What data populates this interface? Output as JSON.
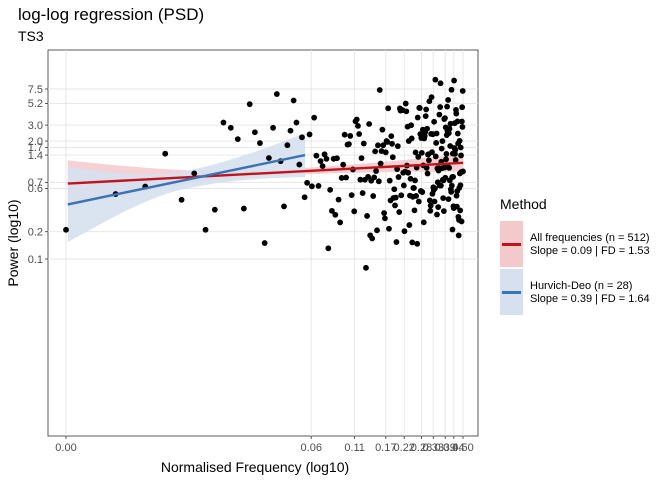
{
  "title": "log-log regression (PSD)",
  "subtitle": "TS3",
  "legend": {
    "title": "Method",
    "items": [
      {
        "line1": "All frequencies (n = 512)",
        "line2": "Slope = 0.09 | FD = 1.53",
        "color": "#c0141c",
        "fill": "#f3c9cc"
      },
      {
        "line1": "Hurvich-Deo (n = 28)",
        "line2": "Slope = 0.39 | FD = 1.64",
        "color": "#3a73b2",
        "fill": "#d6e0ee"
      }
    ]
  },
  "chart_data": {
    "type": "scatter",
    "title": "log-log regression (PSD)",
    "subtitle": "TS3",
    "xlabel": "Normalised Frequency (log10)",
    "ylabel": "Power (log10)",
    "x_ticks": [
      "0.00",
      "0.06",
      "0.11",
      "0.17",
      "0.22",
      "0.28",
      "0.33",
      "0.39",
      "0.44",
      "0.50"
    ],
    "y_ticks": [
      "0.1",
      "0.2",
      "0.6",
      "0.7",
      "1.4",
      "1.7",
      "2.0",
      "3.0",
      "5.2",
      "7.5"
    ],
    "scale": "log-log",
    "grid": true,
    "legend_position": "right",
    "series": [
      {
        "name": "All frequencies (n = 512)",
        "type": "regression-line",
        "color": "#c0141c",
        "x_range": [
          0.002,
          0.5
        ],
        "y_start": 0.68,
        "y_end": 1.15,
        "slope": 0.09,
        "fd": 1.53
      },
      {
        "name": "Hurvich-Deo (n = 28)",
        "type": "regression-line",
        "color": "#3a73b2",
        "x_range": [
          0.002,
          0.055
        ],
        "y_start": 0.4,
        "y_end": 1.4,
        "slope": 0.39,
        "fd": 1.64
      }
    ],
    "points": [
      [
        0.00195,
        0.21
      ],
      [
        0.0039,
        0.52
      ],
      [
        0.0059,
        0.63
      ],
      [
        0.0078,
        1.45
      ],
      [
        0.0098,
        0.45
      ],
      [
        0.0117,
        0.88
      ],
      [
        0.0137,
        0.21
      ],
      [
        0.0156,
        0.35
      ],
      [
        0.0176,
        3.2
      ],
      [
        0.0195,
        2.8
      ],
      [
        0.0215,
        2.1
      ],
      [
        0.0234,
        0.36
      ],
      [
        0.0254,
        5.1
      ],
      [
        0.0273,
        2.5
      ],
      [
        0.0293,
        1.9
      ],
      [
        0.0313,
        0.15
      ],
      [
        0.0332,
        1.3
      ],
      [
        0.0352,
        2.8
      ],
      [
        0.0371,
        6.6
      ],
      [
        0.0391,
        1.2
      ],
      [
        0.041,
        0.38
      ],
      [
        0.043,
        1.8
      ],
      [
        0.0449,
        2.6
      ],
      [
        0.0469,
        5.6
      ],
      [
        0.0488,
        3.2
      ],
      [
        0.0508,
        1.1
      ],
      [
        0.0527,
        2.2
      ],
      [
        0.0547,
        0.48
      ]
    ]
  }
}
